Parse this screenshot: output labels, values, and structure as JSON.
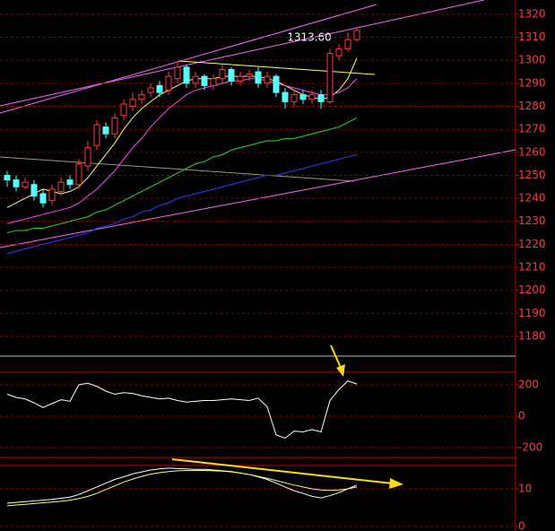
{
  "chart_data": [
    {
      "type": "candlestick",
      "annotation": "1313.60",
      "open": [
        1250,
        1248,
        1245,
        1246,
        1242,
        1239,
        1243,
        1248,
        1246,
        1254,
        1263,
        1271,
        1268,
        1276,
        1280,
        1283,
        1286,
        1289,
        1287,
        1292,
        1297,
        1290,
        1293,
        1289,
        1292,
        1296,
        1291,
        1293,
        1295,
        1290,
        1293,
        1286,
        1282,
        1285,
        1283,
        1285,
        1282,
        1302,
        1305,
        1309
      ],
      "high": [
        1252,
        1250,
        1249,
        1248,
        1244,
        1246,
        1249,
        1250,
        1257,
        1265,
        1274,
        1273,
        1277,
        1283,
        1286,
        1287,
        1290,
        1291,
        1295,
        1299,
        1298,
        1295,
        1294,
        1294,
        1298,
        1297,
        1295,
        1296,
        1297,
        1295,
        1294,
        1288,
        1287,
        1287,
        1287,
        1287,
        1305,
        1307,
        1312,
        1314
      ],
      "low": [
        1245,
        1243,
        1244,
        1239,
        1236,
        1237,
        1241,
        1244,
        1244,
        1252,
        1261,
        1266,
        1266,
        1274,
        1278,
        1281,
        1284,
        1284,
        1285,
        1290,
        1288,
        1288,
        1287,
        1287,
        1290,
        1289,
        1289,
        1291,
        1288,
        1288,
        1284,
        1279,
        1280,
        1281,
        1281,
        1279,
        1281,
        1300,
        1304,
        1308
      ],
      "close": [
        1248,
        1245,
        1247,
        1241,
        1238,
        1244,
        1247,
        1246,
        1255,
        1262,
        1272,
        1268,
        1275,
        1281,
        1283,
        1285,
        1288,
        1286,
        1293,
        1297,
        1290,
        1293,
        1289,
        1292,
        1296,
        1291,
        1293,
        1294,
        1290,
        1293,
        1286,
        1282,
        1285,
        1283,
        1285,
        1282,
        1303,
        1305,
        1309,
        1313
      ],
      "up_color": "#ff3b3b",
      "down_color": "#54ffff",
      "series": [
        {
          "color": "#ffff66",
          "values": [
            1236,
            1238,
            1240,
            1242,
            1244,
            1243,
            1242,
            1243,
            1245,
            1249,
            1254,
            1259,
            1264,
            1270,
            1275,
            1279,
            1282,
            1285,
            1287,
            1289,
            1291,
            1292,
            1292,
            1292,
            1293,
            1293,
            1293,
            1293,
            1293,
            1292,
            1291,
            1289,
            1287,
            1285,
            1284,
            1283,
            1284,
            1287,
            1292,
            1301
          ]
        },
        {
          "color": "#ff44ff",
          "values": [
            1229,
            1230,
            1231,
            1232,
            1233,
            1234,
            1235,
            1236,
            1238,
            1241,
            1244,
            1248,
            1252,
            1257,
            1262,
            1266,
            1271,
            1275,
            1279,
            1282,
            1285,
            1287,
            1288,
            1289,
            1290,
            1291,
            1291,
            1292,
            1292,
            1291,
            1290,
            1289,
            1288,
            1287,
            1286,
            1285,
            1285,
            1286,
            1288,
            1292
          ]
        },
        {
          "color": "#22dd22",
          "values": [
            1225,
            1226,
            1226,
            1227,
            1227,
            1228,
            1229,
            1230,
            1231,
            1232,
            1234,
            1235,
            1237,
            1239,
            1241,
            1243,
            1245,
            1247,
            1249,
            1251,
            1253,
            1255,
            1256,
            1258,
            1259,
            1261,
            1262,
            1263,
            1264,
            1265,
            1265,
            1266,
            1266,
            1267,
            1268,
            1269,
            1270,
            1271,
            1273,
            1275
          ]
        },
        {
          "color": "#2244ff",
          "values": [
            1216,
            1217,
            1218,
            1219,
            1220,
            1221,
            1222,
            1223,
            1224,
            1225,
            1227,
            1228,
            1229,
            1231,
            1232,
            1234,
            1235,
            1237,
            1238,
            1240,
            1241,
            1242,
            1243,
            1244,
            1245,
            1246,
            1247,
            1248,
            1249,
            1250,
            1250,
            1251,
            1252,
            1253,
            1254,
            1255,
            1256,
            1257,
            1258,
            1259
          ]
        }
      ],
      "ylim": [
        1172.2,
        1326.2
      ],
      "yticks": [
        1180,
        1190,
        1200,
        1210,
        1220,
        1230,
        1240,
        1250,
        1260,
        1270,
        1280,
        1290,
        1300,
        1310,
        1320
      ],
      "grid": true
    },
    {
      "type": "line",
      "series": [
        {
          "color": "#ffffff",
          "values": [
            140,
            120,
            110,
            85,
            55,
            80,
            105,
            95,
            200,
            210,
            190,
            160,
            140,
            150,
            145,
            130,
            120,
            110,
            115,
            100,
            90,
            95,
            100,
            100,
            105,
            110,
            105,
            100,
            115,
            60,
            -120,
            -140,
            -95,
            -100,
            -85,
            -100,
            100,
            170,
            225,
            205
          ]
        }
      ],
      "ylim": [
        -263,
        280
      ],
      "yticks": [
        -200,
        0,
        200
      ],
      "grid": true
    },
    {
      "type": "line",
      "series": [
        {
          "color": "#ffffff",
          "values": [
            6.2,
            6.4,
            6.6,
            6.8,
            7.0,
            7.2,
            7.5,
            7.8,
            8.5,
            9.5,
            10.5,
            11.5,
            12.5,
            13.2,
            14,
            14.5,
            15,
            15.3,
            15.5,
            15.4,
            15.3,
            15.2,
            15.2,
            15,
            14.8,
            14.6,
            14.2,
            13.8,
            13.2,
            12.5,
            11.5,
            10.5,
            9.5,
            8.8,
            8,
            7.6,
            8.2,
            9,
            10,
            11
          ]
        },
        {
          "color": "#ffff66",
          "values": [
            5.5,
            5.7,
            5.9,
            6.1,
            6.3,
            6.5,
            6.7,
            7,
            7.4,
            8,
            8.8,
            9.8,
            10.8,
            11.8,
            12.6,
            13.3,
            13.9,
            14.3,
            14.6,
            14.8,
            14.9,
            14.9,
            14.9,
            14.8,
            14.7,
            14.5,
            14.2,
            13.8,
            13.3,
            12.8,
            12.2,
            11.6,
            11,
            10.5,
            10,
            9.7,
            9.6,
            9.7,
            10,
            10.5
          ]
        }
      ],
      "ylim": [
        -1.2,
        16.2
      ],
      "yticks": [
        0,
        10
      ],
      "grid": true
    }
  ]
}
